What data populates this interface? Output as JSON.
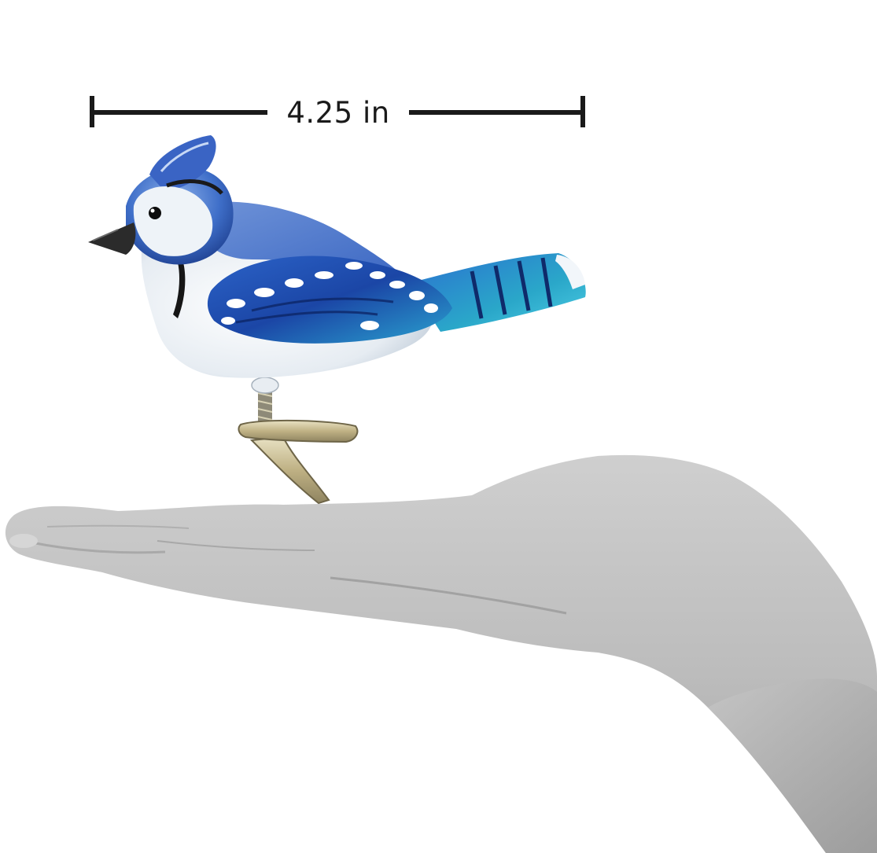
{
  "measurement": {
    "label": "4.25 in",
    "value": 4.25,
    "unit": "in"
  },
  "subject": {
    "ornament": "blue-jay-glass-ornament",
    "prop": "open-palm-hand"
  },
  "colors": {
    "background": "#ffffff",
    "dimension_line": "#1a1a1a",
    "bird_blue_dark": "#1d3f9a",
    "bird_blue": "#2f6ad0",
    "bird_teal": "#2aa7c9",
    "bird_white": "#eef3f8",
    "beak": "#2b2b2b",
    "clip_metal": "#c9bc8e",
    "hand_gray": "#bdbdbd",
    "hand_shadow": "#9c9c9c"
  }
}
